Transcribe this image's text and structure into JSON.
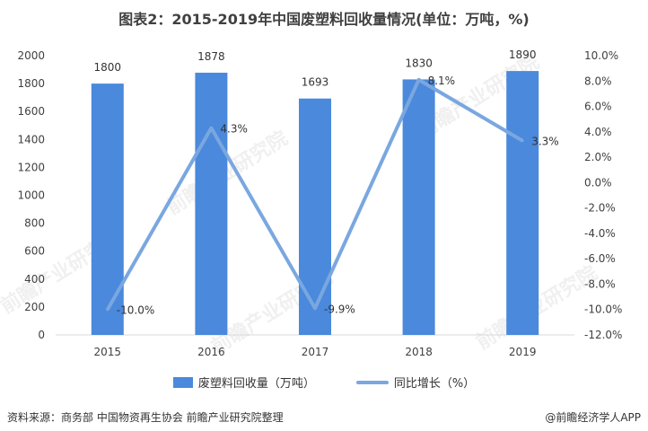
{
  "title": "图表2：2015-2019年中国废塑料回收量情况(单位：万吨，%)",
  "footer": {
    "source": "资料来源：商务部 中国物资再生协会 前瞻产业研究院整理",
    "brand": "@前瞻经济学人APP"
  },
  "watermark": "前瞻产业研究院",
  "colors": {
    "bar": "#4A89DC",
    "line": "#7AA7E0",
    "grid": "#D9D9D9",
    "text": "#404040"
  },
  "chart_data": {
    "type": "bar",
    "categories": [
      "2015",
      "2016",
      "2017",
      "2018",
      "2019"
    ],
    "series": [
      {
        "name": "废塑料回收量（万吨）",
        "kind": "bar",
        "axis": "left",
        "values": [
          1800,
          1878,
          1693,
          1830,
          1890
        ],
        "labels": [
          "1800",
          "1878",
          "1693",
          "1830",
          "1890"
        ]
      },
      {
        "name": "同比增长（%）",
        "kind": "line",
        "axis": "right",
        "values": [
          -10.0,
          4.3,
          -9.9,
          8.1,
          3.3
        ],
        "labels": [
          "-10.0%",
          "4.3%",
          "-9.9%",
          "8.1%",
          "3.3%"
        ]
      }
    ],
    "yleft": {
      "ylim": [
        0,
        2000
      ],
      "ticks": [
        0,
        200,
        400,
        600,
        800,
        1000,
        1200,
        1400,
        1600,
        1800,
        2000
      ]
    },
    "yright": {
      "ylim": [
        -12,
        10
      ],
      "ticks": [
        "-12.0%",
        "-10.0%",
        "-8.0%",
        "-6.0%",
        "-4.0%",
        "-2.0%",
        "0.0%",
        "2.0%",
        "4.0%",
        "6.0%",
        "8.0%",
        "10.0%"
      ]
    },
    "grid": false,
    "legend": "bottom"
  }
}
